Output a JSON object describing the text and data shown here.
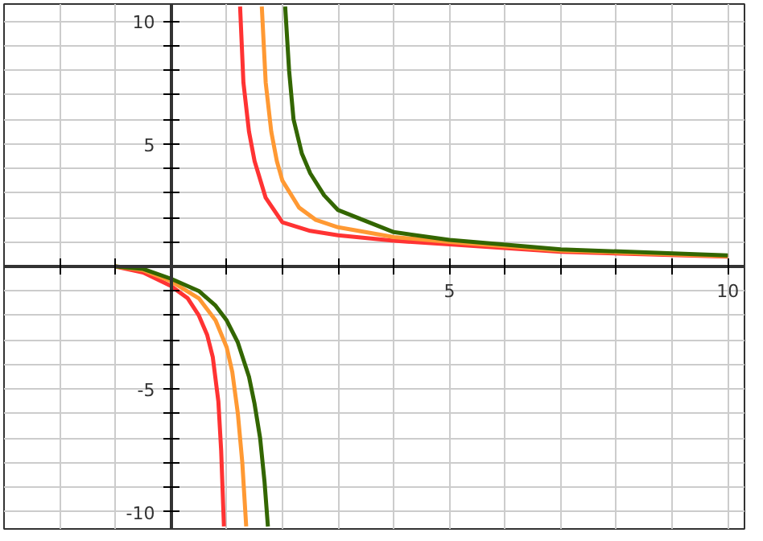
{
  "chart_data": {
    "type": "line",
    "xlim": [
      -3,
      10.3
    ],
    "ylim": [
      -10.7,
      10.7
    ],
    "xticks": [
      {
        "value": -2,
        "label": null
      },
      {
        "value": -1,
        "label": null
      },
      {
        "value": 1,
        "label": null
      },
      {
        "value": 2,
        "label": null
      },
      {
        "value": 3,
        "label": null
      },
      {
        "value": 4,
        "label": null
      },
      5,
      {
        "value": 6,
        "label": null
      },
      {
        "value": 7,
        "label": null
      },
      {
        "value": 8,
        "label": null
      },
      {
        "value": 9,
        "label": null
      },
      10
    ],
    "yticks": [
      -10,
      {
        "value": -9,
        "label": null
      },
      {
        "value": -8,
        "label": null
      },
      {
        "value": -7,
        "label": null
      },
      {
        "value": -6,
        "label": null
      },
      -5,
      {
        "value": -4,
        "label": null
      },
      {
        "value": -3,
        "label": null
      },
      {
        "value": -2,
        "label": null
      },
      {
        "value": -1,
        "label": null
      },
      {
        "value": 1,
        "label": null
      },
      {
        "value": 2,
        "label": null
      },
      {
        "value": 3,
        "label": null
      },
      {
        "value": 4,
        "label": null
      },
      5,
      {
        "value": 6,
        "label": null
      },
      {
        "value": 7,
        "label": null
      },
      {
        "value": 8,
        "label": null
      },
      {
        "value": 9,
        "label": null
      },
      10
    ],
    "grid": true,
    "line_style": "solid",
    "series": [
      {
        "color": "#ff3333",
        "x": [
          -1,
          -0.5,
          0,
          0.3,
          0.5,
          0.65,
          0.75,
          0.85,
          0.9,
          0.95,
          1.05,
          1.24,
          1.3,
          1.4,
          1.5,
          1.7,
          2,
          2.5,
          3,
          4,
          5,
          7,
          10
        ],
        "values": [
          0,
          -0.25,
          -0.8,
          -1.3,
          -2.0,
          -2.8,
          -3.7,
          -5.5,
          -7.5,
          -10.6,
          null,
          10.6,
          7.5,
          5.5,
          4.3,
          2.8,
          1.8,
          1.45,
          1.27,
          1.05,
          0.9,
          0.6,
          0.4
        ]
      },
      {
        "color": "#ff9933",
        "x": [
          -1,
          -0.5,
          0,
          0.5,
          0.8,
          1.0,
          1.1,
          1.2,
          1.28,
          1.35,
          1.45,
          1.63,
          1.7,
          1.8,
          1.9,
          2,
          2.3,
          2.6,
          3,
          4,
          5,
          7,
          10
        ],
        "values": [
          0,
          -0.15,
          -0.6,
          -1.3,
          -2.2,
          -3.3,
          -4.3,
          -6,
          -8,
          -10.6,
          null,
          10.6,
          7.5,
          5.5,
          4.3,
          3.5,
          2.4,
          1.9,
          1.6,
          1.2,
          1.0,
          0.65,
          0.42
        ]
      },
      {
        "color": "#336600",
        "x": [
          -1,
          -0.5,
          0,
          0.5,
          0.8,
          1.0,
          1.2,
          1.4,
          1.5,
          1.6,
          1.68,
          1.74,
          1.9,
          2.05,
          2.12,
          2.2,
          2.35,
          2.5,
          2.75,
          3,
          4,
          5,
          7,
          10
        ],
        "values": [
          0,
          -0.1,
          -0.5,
          -1.0,
          -1.6,
          -2.2,
          -3.1,
          -4.5,
          -5.6,
          -7,
          -8.8,
          -10.6,
          null,
          10.6,
          8,
          6,
          4.6,
          3.8,
          2.9,
          2.3,
          1.4,
          1.08,
          0.7,
          0.45
        ]
      }
    ]
  }
}
